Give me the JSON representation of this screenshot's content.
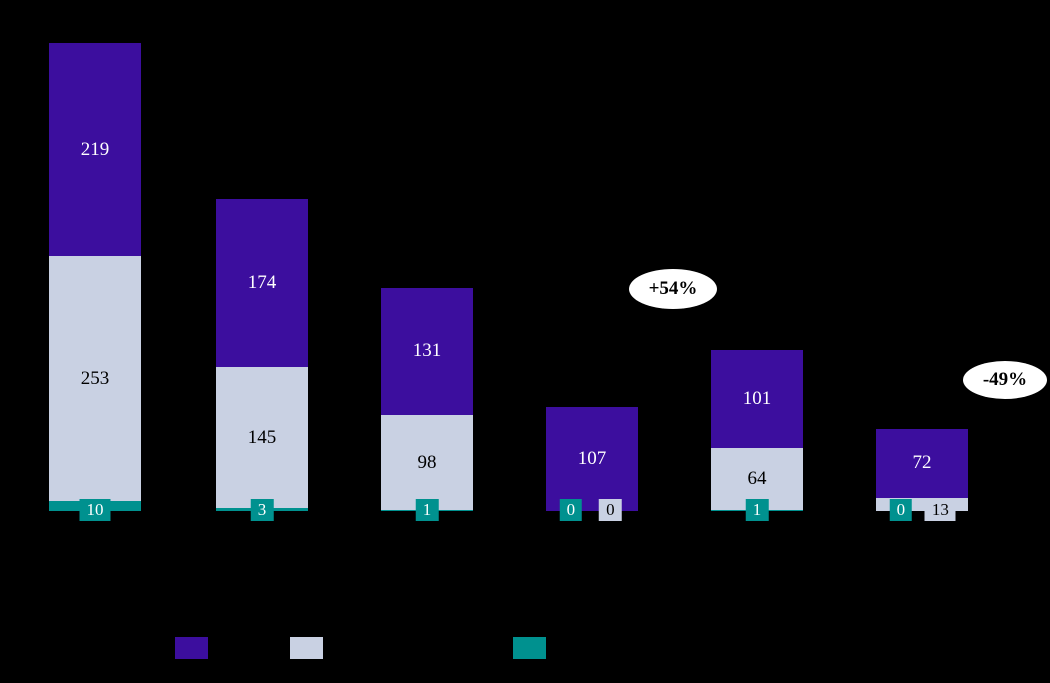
{
  "chart_data": {
    "type": "bar",
    "stacked": true,
    "title": "",
    "background": "#000000",
    "categories": [
      "",
      "",
      "",
      "",
      "",
      ""
    ],
    "series": [
      {
        "name": "purple",
        "color": "#3C0E9E",
        "text_color": "#FFFFFF",
        "values": [
          219,
          174,
          131,
          107,
          101,
          72
        ]
      },
      {
        "name": "gray",
        "color": "#C9D1E3",
        "text_color": "#000000",
        "values": [
          253,
          145,
          98,
          0,
          64,
          13
        ]
      },
      {
        "name": "teal",
        "color": "#00918F",
        "text_color": "#FFFFFF",
        "values": [
          10,
          3,
          1,
          0,
          1,
          0
        ]
      }
    ],
    "stack_order_bottom_to_top": [
      "teal",
      "gray",
      "purple"
    ],
    "annotations": [
      {
        "text": "+54%"
      },
      {
        "text": "-49%"
      }
    ],
    "legend_position": "bottom"
  }
}
